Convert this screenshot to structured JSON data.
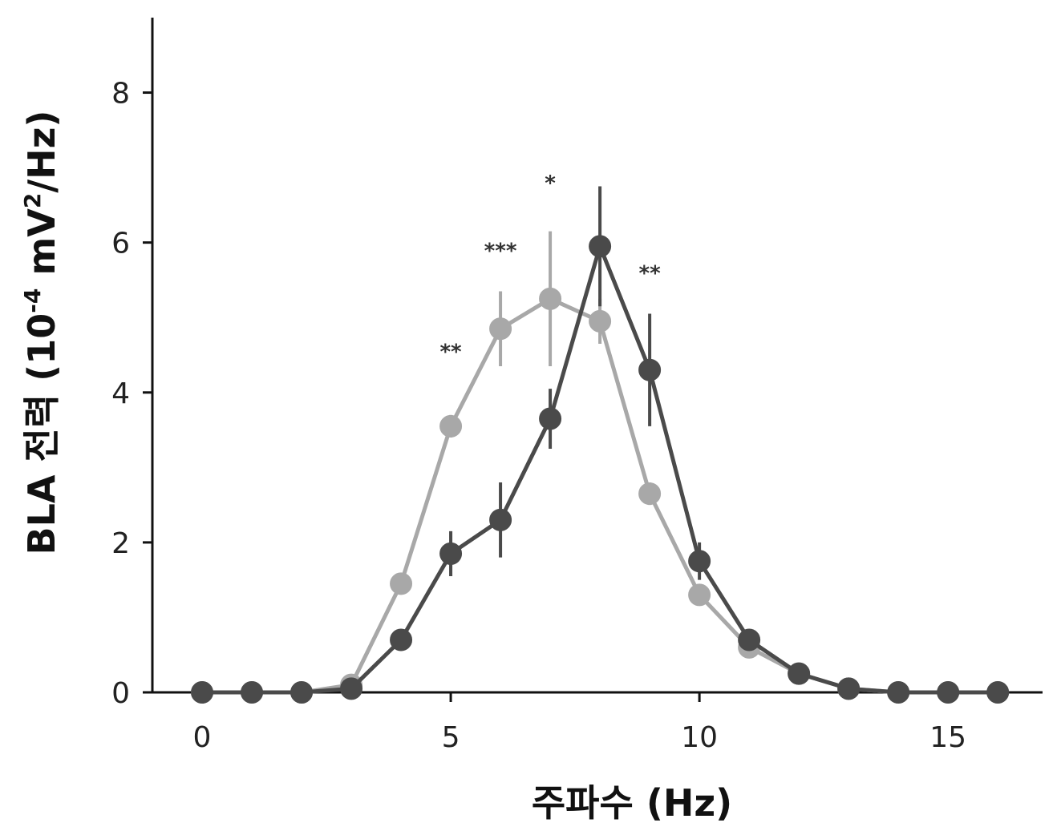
{
  "chart_data": {
    "type": "line",
    "title": "",
    "xlabel": "주파수 (Hz)",
    "ylabel": "BLA 전력 (10",
    "ylabel_exp": "-4",
    "ylabel_mid": " mV",
    "ylabel_sq": "2",
    "ylabel_end": "/Hz)",
    "xlim": [
      -1,
      16.9
    ],
    "ylim": [
      0,
      9
    ],
    "xticks": [
      0,
      5,
      10,
      15
    ],
    "xtick_labels": [
      "0",
      "5",
      "10",
      "15"
    ],
    "yticks": [
      0,
      2,
      4,
      6,
      8
    ],
    "ytick_labels": [
      "0",
      "2",
      "4",
      "6",
      "8"
    ],
    "grid": false,
    "x": [
      0,
      1,
      2,
      3,
      4,
      5,
      6,
      7,
      8,
      9,
      10,
      11,
      12,
      13,
      14,
      15,
      16
    ],
    "series": [
      {
        "color": "#a8a8a8",
        "values": [
          0,
          0,
          0,
          0.1,
          1.45,
          3.55,
          4.85,
          5.25,
          4.95,
          2.65,
          1.3,
          0.6,
          0.25,
          0.05,
          0,
          0,
          0
        ],
        "errors": [
          0,
          0,
          0,
          0,
          0.1,
          0.15,
          0.5,
          0.9,
          0.3,
          0.15,
          0.1,
          0.05,
          0.05,
          0,
          0,
          0,
          0
        ]
      },
      {
        "color": "#4a4a4a",
        "values": [
          0,
          0,
          0,
          0.05,
          0.7,
          1.85,
          2.3,
          3.65,
          5.95,
          4.3,
          1.75,
          0.7,
          0.25,
          0.05,
          0,
          0,
          0
        ],
        "errors": [
          0,
          0,
          0,
          0,
          0.05,
          0.3,
          0.5,
          0.4,
          0.8,
          0.75,
          0.25,
          0.05,
          0.05,
          0,
          0,
          0,
          0
        ]
      }
    ],
    "annotations": [
      {
        "x": 5,
        "y": 4.45,
        "text": "**"
      },
      {
        "x": 6,
        "y": 5.8,
        "text": "***"
      },
      {
        "x": 7,
        "y": 6.7,
        "text": "*"
      },
      {
        "x": 9,
        "y": 5.5,
        "text": "**"
      }
    ]
  }
}
